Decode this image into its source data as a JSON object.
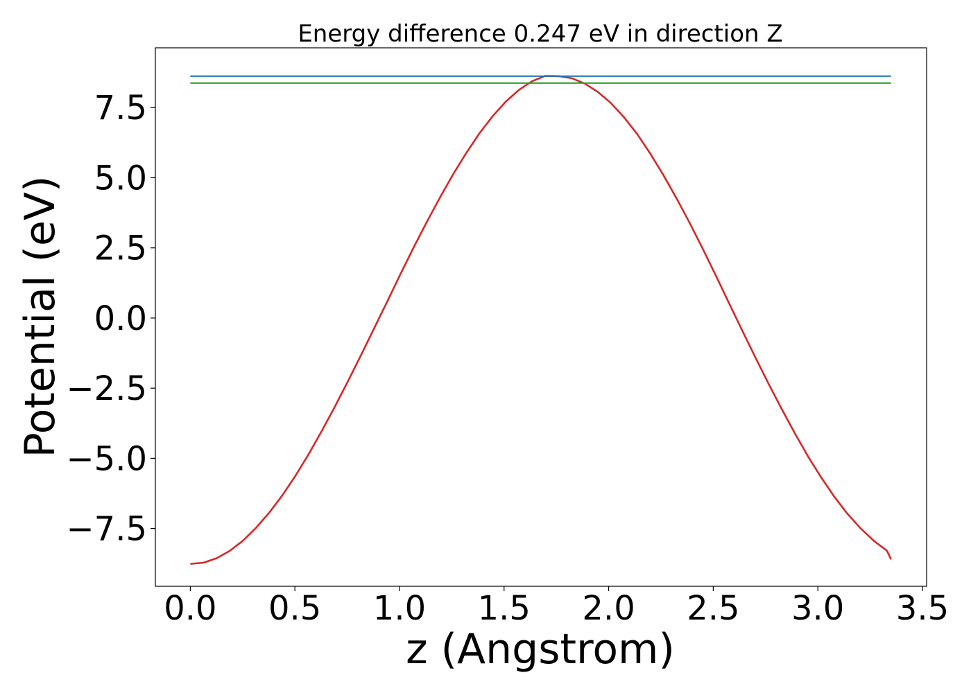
{
  "chart_data": {
    "type": "line",
    "title": "Energy difference 0.247 eV in direction Z",
    "xlabel": "z (Angstrom)",
    "ylabel": "Potential (eV)",
    "xlim": [
      -0.167,
      3.52
    ],
    "ylim": [
      -9.56,
      9.63
    ],
    "x_ticks": [
      0.0,
      0.5,
      1.0,
      1.5,
      2.0,
      2.5,
      3.0,
      3.5
    ],
    "x_tick_labels": [
      "0.0",
      "0.5",
      "1.0",
      "1.5",
      "2.0",
      "2.5",
      "3.0",
      "3.5"
    ],
    "y_ticks": [
      -7.5,
      -5.0,
      -2.5,
      0.0,
      2.5,
      5.0,
      7.5
    ],
    "y_tick_labels": [
      "−7.5",
      "−5.0",
      "−2.5",
      "0.0",
      "2.5",
      "5.0",
      "7.5"
    ],
    "grid": false,
    "series": [
      {
        "color": "#d62728",
        "x": [
          0.0,
          0.063,
          0.126,
          0.188,
          0.251,
          0.314,
          0.377,
          0.44,
          0.503,
          0.566,
          0.628,
          0.691,
          0.754,
          0.817,
          0.88,
          0.943,
          1.005,
          1.068,
          1.131,
          1.194,
          1.257,
          1.32,
          1.382,
          1.445,
          1.508,
          1.571,
          1.634,
          1.697,
          1.76,
          1.822,
          1.885,
          1.948,
          2.011,
          2.074,
          2.137,
          2.199,
          2.262,
          2.325,
          2.388,
          2.451,
          2.514,
          2.576,
          2.639,
          2.702,
          2.765,
          2.828,
          2.891,
          2.953,
          3.016,
          3.079,
          3.142,
          3.205,
          3.268,
          3.33,
          3.35
        ],
        "y": [
          -8.76,
          -8.72,
          -8.56,
          -8.3,
          -7.94,
          -7.48,
          -6.94,
          -6.32,
          -5.62,
          -4.85,
          -4.03,
          -3.16,
          -2.25,
          -1.31,
          -0.35,
          0.61,
          1.57,
          2.52,
          3.43,
          4.3,
          5.13,
          5.89,
          6.58,
          7.19,
          7.71,
          8.13,
          8.44,
          8.63,
          8.62,
          8.55,
          8.36,
          8.06,
          7.66,
          7.15,
          6.55,
          5.86,
          5.09,
          4.26,
          3.38,
          2.45,
          1.49,
          0.52,
          -0.45,
          -1.41,
          -2.35,
          -3.25,
          -4.12,
          -4.93,
          -5.68,
          -6.37,
          -6.98,
          -7.5,
          -7.94,
          -8.29,
          -8.6
        ]
      },
      {
        "color": "#1f77b4",
        "x": [
          0.0,
          3.35
        ],
        "y": [
          8.62,
          8.62
        ]
      },
      {
        "color": "#2ca02c",
        "x": [
          0.0,
          3.35
        ],
        "y": [
          8.373,
          8.373
        ]
      }
    ]
  }
}
